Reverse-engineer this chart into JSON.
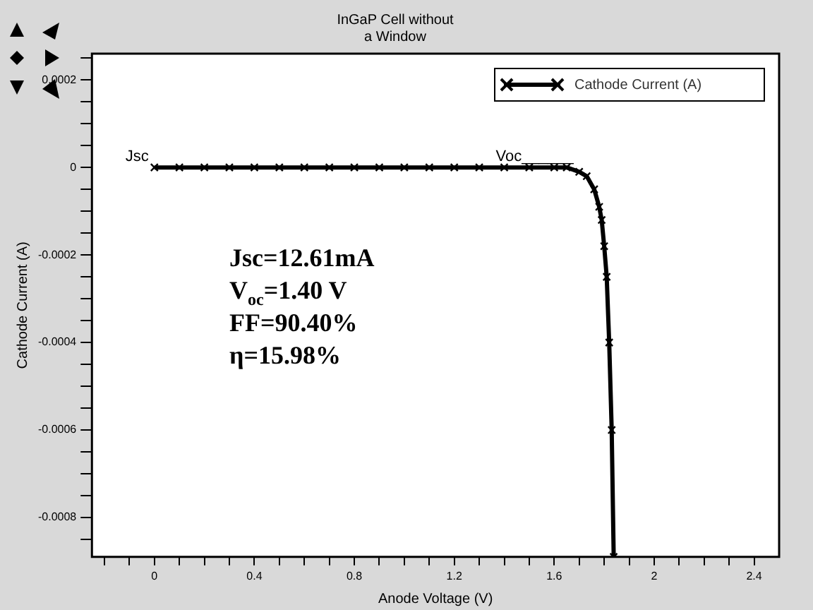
{
  "chart_data": {
    "type": "line",
    "title": "InGaP Cell without\na Window",
    "xlabel": "Anode Voltage (V)",
    "ylabel": "Cathode Current (A)",
    "x": [
      0,
      0.1,
      0.2,
      0.3,
      0.4,
      0.5,
      0.6,
      0.7,
      0.8,
      0.9,
      1.0,
      1.1,
      1.2,
      1.3,
      1.4,
      1.5,
      1.6,
      1.65,
      1.7,
      1.73,
      1.76,
      1.78,
      1.79,
      1.8,
      1.81,
      1.82,
      1.83,
      1.838
    ],
    "series": [
      {
        "name": "Cathode Current (A)",
        "color": "#000000",
        "values": [
          0,
          0,
          0,
          0,
          0,
          0,
          0,
          0,
          0,
          0,
          0,
          0,
          0,
          0,
          0,
          0,
          0,
          0,
          -1e-05,
          -2e-05,
          -5e-05,
          -9e-05,
          -0.00012,
          -0.00018,
          -0.00025,
          -0.0004,
          -0.0006,
          -0.00089
        ]
      }
    ],
    "xlim": [
      -0.25,
      2.5
    ],
    "xticks": [
      {
        "value": -0.2,
        "label": null
      },
      {
        "value": -0.1,
        "label": null
      },
      0,
      {
        "value": 0.1,
        "label": null
      },
      {
        "value": 0.2,
        "label": null
      },
      {
        "value": 0.3,
        "label": null
      },
      0.4,
      {
        "value": 0.5,
        "label": null
      },
      {
        "value": 0.6,
        "label": null
      },
      {
        "value": 0.7,
        "label": null
      },
      0.8,
      {
        "value": 0.9,
        "label": null
      },
      {
        "value": 1.0,
        "label": null
      },
      {
        "value": 1.1,
        "label": null
      },
      1.2,
      {
        "value": 1.3,
        "label": null
      },
      {
        "value": 1.4,
        "label": null
      },
      {
        "value": 1.5,
        "label": null
      },
      1.6,
      {
        "value": 1.7,
        "label": null
      },
      {
        "value": 1.8,
        "label": null
      },
      {
        "value": 1.9,
        "label": null
      },
      2,
      {
        "value": 2.1,
        "label": null
      },
      {
        "value": 2.2,
        "label": null
      },
      {
        "value": 2.3,
        "label": null
      },
      2.4
    ],
    "ylim": [
      -0.00089,
      0.00026
    ],
    "yticks": [
      {
        "value": 0.00025,
        "label": null
      },
      0.0002,
      {
        "value": 0.00015,
        "label": null
      },
      {
        "value": 0.0001,
        "label": null
      },
      {
        "value": 5e-05,
        "label": null
      },
      0,
      {
        "value": -5e-05,
        "label": null
      },
      {
        "value": -0.0001,
        "label": null
      },
      {
        "value": -0.00015,
        "label": null
      },
      -0.0002,
      {
        "value": -0.00025,
        "label": null
      },
      {
        "value": -0.0003,
        "label": null
      },
      {
        "value": -0.00035,
        "label": null
      },
      -0.0004,
      {
        "value": -0.00045,
        "label": null
      },
      {
        "value": -0.0005,
        "label": null
      },
      {
        "value": -0.00055,
        "label": null
      },
      -0.0006,
      {
        "value": -0.00065,
        "label": null
      },
      {
        "value": -0.0007,
        "label": null
      },
      {
        "value": -0.00075,
        "label": null
      },
      -0.0008,
      {
        "value": -0.00085,
        "label": null
      }
    ],
    "annotations": [
      {
        "text": "Jsc",
        "x": 0,
        "y": 0
      },
      {
        "text": "Voc______",
        "x": 1.7,
        "y": 0
      },
      "Jsc=12.61mA",
      "V$_{oc}$=1.40 V",
      "FF=90.40%",
      "η=15.98%"
    ],
    "legend": "top right",
    "marker": "cross",
    "line_style": "solid",
    "grid": false
  }
}
